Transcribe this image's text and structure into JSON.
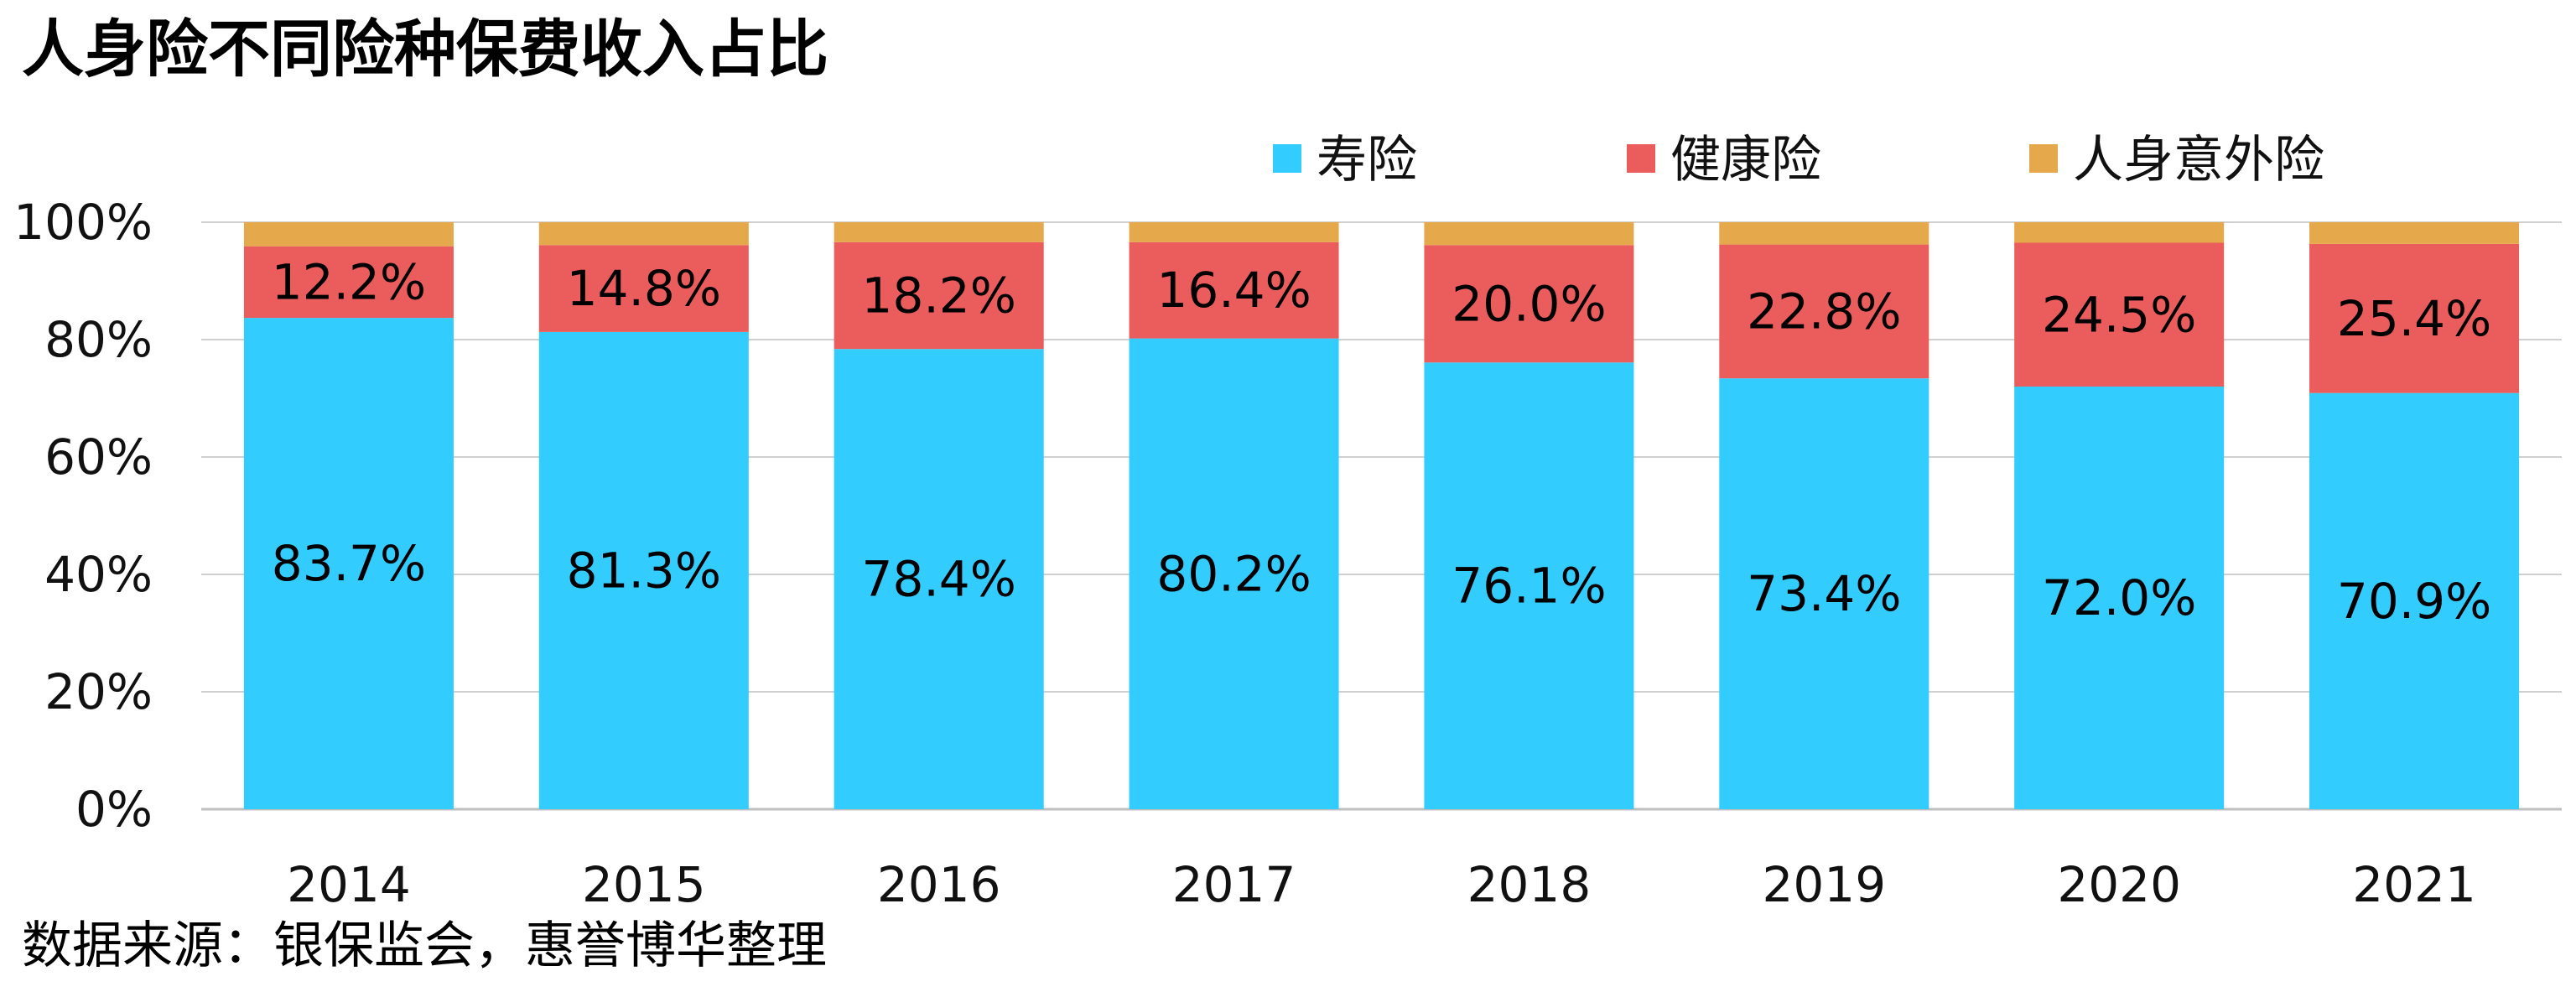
{
  "title": "人身险不同险种保费收入占比",
  "source": "数据来源：银保监会，惠誉博华整理",
  "chart_data": {
    "type": "bar",
    "stacked": true,
    "categories": [
      "2014",
      "2015",
      "2016",
      "2017",
      "2018",
      "2019",
      "2020",
      "2021"
    ],
    "ylim": [
      0,
      100
    ],
    "yticks": [
      "0%",
      "20%",
      "40%",
      "60%",
      "80%",
      "100%"
    ],
    "grid": true,
    "legend_position": "top-right",
    "series": [
      {
        "name": "寿险",
        "color": "#33CCFF",
        "values": [
          83.7,
          81.3,
          78.4,
          80.2,
          76.1,
          73.4,
          72.0,
          70.9
        ],
        "labels": [
          "83.7%",
          "81.3%",
          "78.4%",
          "80.2%",
          "76.1%",
          "73.4%",
          "72.0%",
          "70.9%"
        ]
      },
      {
        "name": "健康险",
        "color": "#EB5C5C",
        "values": [
          12.2,
          14.8,
          18.2,
          16.4,
          20.0,
          22.8,
          24.5,
          25.4
        ],
        "labels": [
          "12.2%",
          "14.8%",
          "18.2%",
          "16.4%",
          "20.0%",
          "22.8%",
          "24.5%",
          "25.4%"
        ]
      },
      {
        "name": "人身意外险",
        "color": "#E5A84B",
        "values": [
          4.1,
          3.9,
          3.4,
          3.4,
          3.9,
          3.8,
          3.5,
          3.7
        ]
      }
    ]
  }
}
